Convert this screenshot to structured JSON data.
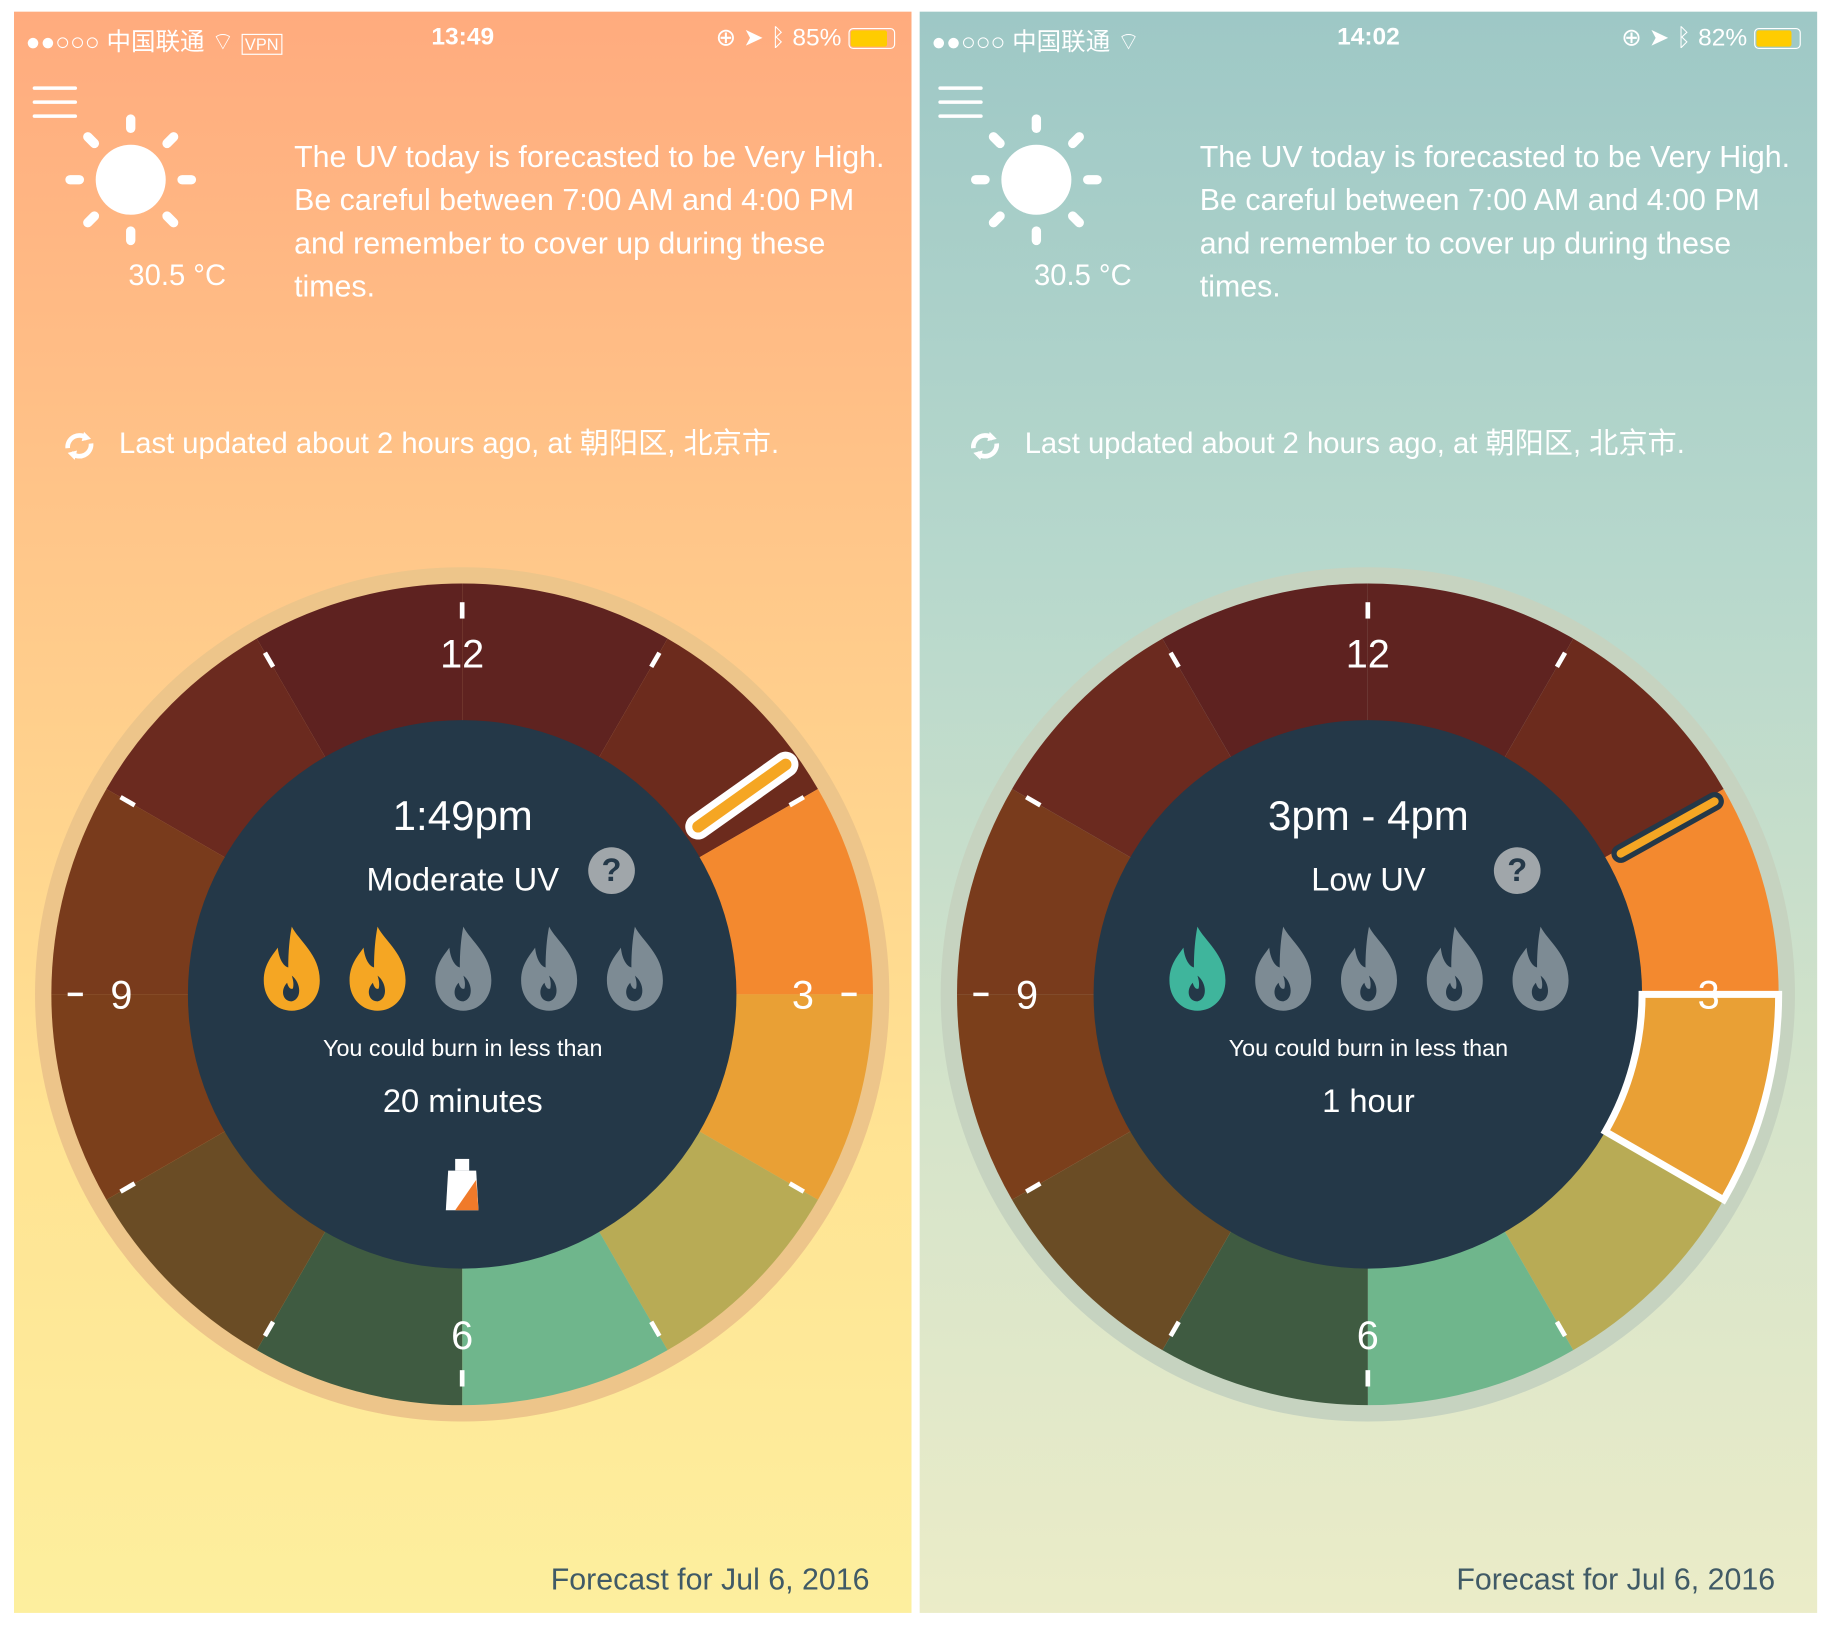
{
  "panels": [
    {
      "status": {
        "carrier": "●●○○○ 中国联通",
        "vpn": "VPN",
        "time": "13:49",
        "battery": "85%",
        "battery_level": 85
      },
      "temperature": "30.5 °C",
      "message": "The UV today is forecasted to be Very High. Be careful between 7:00 AM and 4:00 PM and remember to cover up during these times.",
      "last_updated": "Last updated about 2 hours ago, at 朝阳区, 北京市.",
      "clock": {
        "title": "1:49pm",
        "uv_label": "Moderate UV",
        "flames_active": 2,
        "flame_color": "#f5a623",
        "burn_prefix": "You could burn in less than",
        "burn_time": "20 minutes",
        "show_sunscreen": true,
        "hand_hour": 1.82,
        "hand_style": "light",
        "selected_hour": null
      },
      "forecast": "Forecast for Jul 6, 2016",
      "theme": "#ffab7e"
    },
    {
      "status": {
        "carrier": "●●○○○ 中国联通",
        "vpn": "",
        "time": "14:02",
        "battery": "82%",
        "battery_level": 82
      },
      "temperature": "30.5 °C",
      "message": "The UV today is forecasted to be Very High. Be careful between 7:00 AM and 4:00 PM and remember to cover up during these times.",
      "last_updated": "Last updated about 2 hours ago, at 朝阳区, 北京市.",
      "clock": {
        "title": "3pm - 4pm",
        "uv_label": "Low UV",
        "flames_active": 1,
        "flame_color": "#3fb59c",
        "burn_prefix": "You could burn in less than",
        "burn_time": "1 hour",
        "show_sunscreen": false,
        "hand_hour": 2.03,
        "hand_style": "dark",
        "selected_hour": 3
      },
      "forecast": "Forecast for Jul 6, 2016",
      "theme": "#9ec8c6"
    }
  ],
  "clock_numbers": [
    "12",
    "3",
    "6",
    "9"
  ],
  "segment_colors": [
    "#5f2320",
    "#6c2b1d",
    "#f3892f",
    "#e9a035",
    "#b8ab55",
    "#6fb68c",
    "#3f5b41",
    "#6a4c25",
    "#7b3f1b",
    "#793b1c",
    "#6b2a1f",
    "#5e2220"
  ],
  "flame_inactive": "#7d8b94"
}
